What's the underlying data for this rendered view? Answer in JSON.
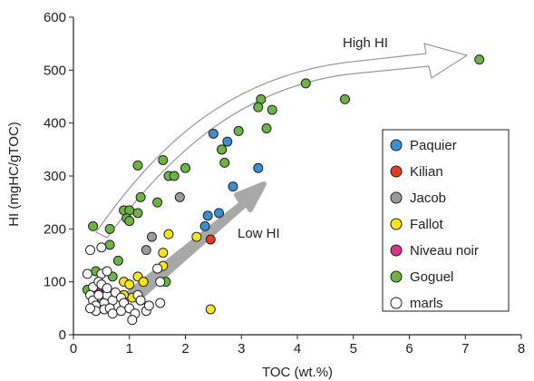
{
  "chart_data": {
    "type": "scatter",
    "xlabel": "TOC (wt.%)",
    "ylabel": "HI (mgHC/gTOC)",
    "xlim": [
      0,
      8
    ],
    "ylim": [
      0,
      600
    ],
    "xticks": [
      "0",
      "1",
      "2",
      "3",
      "4",
      "5",
      "6",
      "7",
      "8"
    ],
    "yticks": [
      "0",
      "100",
      "200",
      "300",
      "400",
      "500",
      "600"
    ],
    "grid": false,
    "legend_position": "right",
    "annotations": {
      "high_hi": "High HI",
      "low_hi": "Low HI"
    },
    "series": [
      {
        "name": "Paquier",
        "color": "#3a8fd0",
        "points": [
          [
            2.35,
            205
          ],
          [
            2.4,
            225
          ],
          [
            2.6,
            230
          ],
          [
            2.5,
            380
          ],
          [
            2.65,
            350
          ],
          [
            2.75,
            365
          ],
          [
            2.85,
            280
          ],
          [
            3.3,
            315
          ]
        ]
      },
      {
        "name": "Kilian",
        "color": "#e03c28",
        "points": [
          [
            2.45,
            180
          ]
        ]
      },
      {
        "name": "Jacob",
        "color": "#9a9a9a",
        "points": [
          [
            1.9,
            260
          ],
          [
            1.4,
            185
          ],
          [
            1.3,
            160
          ],
          [
            0.6,
            85
          ]
        ]
      },
      {
        "name": "Fallot",
        "color": "#f7e51b",
        "points": [
          [
            1.7,
            190
          ],
          [
            2.2,
            185
          ],
          [
            1.6,
            155
          ],
          [
            1.6,
            130
          ],
          [
            0.9,
            100
          ],
          [
            1.0,
            95
          ],
          [
            0.7,
            75
          ],
          [
            1.15,
            110
          ],
          [
            1.25,
            100
          ],
          [
            1.05,
            70
          ],
          [
            0.5,
            55
          ],
          [
            0.55,
            60
          ],
          [
            2.45,
            48
          ],
          [
            0.9,
            75
          ],
          [
            1.2,
            65
          ]
        ]
      },
      {
        "name": "Niveau noir",
        "color": "#d8338a",
        "points": [
          [
            0.4,
            80
          ],
          [
            0.45,
            90
          ],
          [
            0.65,
            60
          ],
          [
            0.5,
            70
          ]
        ]
      },
      {
        "name": "Goguel",
        "color": "#6cb542",
        "points": [
          [
            7.25,
            520
          ],
          [
            4.85,
            445
          ],
          [
            4.15,
            475
          ],
          [
            3.35,
            445
          ],
          [
            3.3,
            430
          ],
          [
            3.55,
            425
          ],
          [
            3.45,
            390
          ],
          [
            2.95,
            385
          ],
          [
            2.65,
            350
          ],
          [
            2.7,
            325
          ],
          [
            1.6,
            330
          ],
          [
            1.7,
            300
          ],
          [
            1.8,
            300
          ],
          [
            2.0,
            315
          ],
          [
            1.15,
            320
          ],
          [
            1.2,
            260
          ],
          [
            1.5,
            250
          ],
          [
            0.35,
            205
          ],
          [
            0.9,
            235
          ],
          [
            1.0,
            235
          ],
          [
            1.15,
            230
          ],
          [
            0.95,
            220
          ],
          [
            1.0,
            215
          ],
          [
            0.65,
            200
          ],
          [
            0.4,
            120
          ],
          [
            0.65,
            170
          ],
          [
            0.8,
            140
          ],
          [
            0.25,
            85
          ],
          [
            1.65,
            100
          ],
          [
            0.7,
            110
          ]
        ]
      },
      {
        "name": "marls",
        "color": "#ffffff",
        "points": [
          [
            0.3,
            160
          ],
          [
            0.5,
            165
          ],
          [
            0.25,
            115
          ],
          [
            0.5,
            115
          ],
          [
            0.6,
            120
          ],
          [
            1.5,
            125
          ],
          [
            1.55,
            100
          ],
          [
            0.35,
            90
          ],
          [
            0.45,
            100
          ],
          [
            0.5,
            95
          ],
          [
            0.3,
            75
          ],
          [
            0.35,
            65
          ],
          [
            0.4,
            55
          ],
          [
            0.5,
            70
          ],
          [
            0.55,
            60
          ],
          [
            0.6,
            75
          ],
          [
            0.7,
            65
          ],
          [
            0.75,
            80
          ],
          [
            0.85,
            70
          ],
          [
            0.9,
            60
          ],
          [
            0.4,
            45
          ],
          [
            0.55,
            48
          ],
          [
            0.65,
            50
          ],
          [
            0.7,
            40
          ],
          [
            0.85,
            45
          ],
          [
            1.0,
            50
          ],
          [
            1.1,
            40
          ],
          [
            1.15,
            75
          ],
          [
            1.2,
            65
          ],
          [
            1.3,
            45
          ],
          [
            1.35,
            55
          ],
          [
            1.55,
            60
          ],
          [
            1.05,
            28
          ],
          [
            0.45,
            75
          ],
          [
            0.6,
            88
          ],
          [
            0.3,
            50
          ]
        ]
      }
    ]
  }
}
